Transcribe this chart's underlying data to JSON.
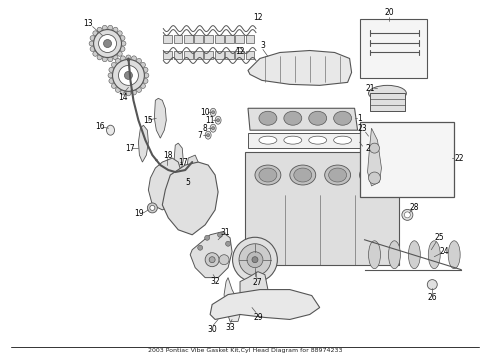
{
  "title": "2003 Pontiac Vibe Gasket Kit,Cyl Head Diagram for 88974233",
  "background_color": "#ffffff",
  "line_color": "#555555",
  "text_color": "#000000",
  "fig_width": 4.9,
  "fig_height": 3.6,
  "dpi": 100
}
